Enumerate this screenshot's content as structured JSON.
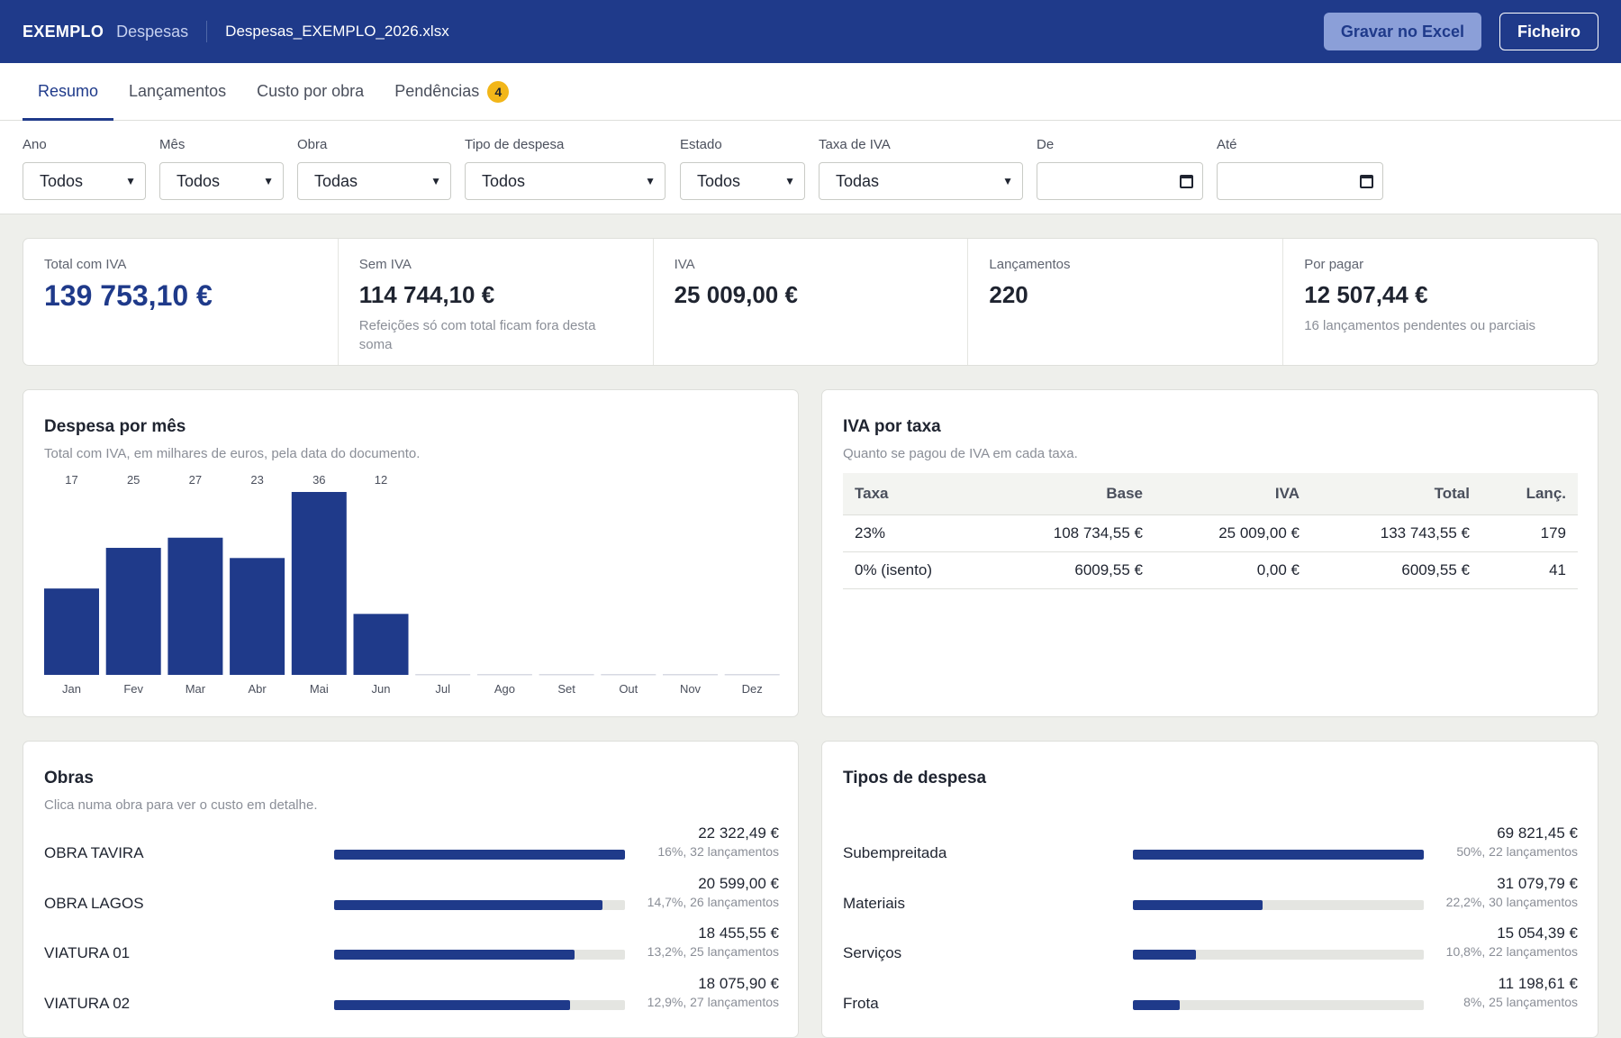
{
  "header": {
    "brand": "EXEMPLO",
    "section": "Despesas",
    "filename": "Despesas_EXEMPLO_2026.xlsx",
    "save_button": "Gravar no Excel",
    "file_button": "Ficheiro"
  },
  "tabs": [
    {
      "label": "Resumo",
      "active": true
    },
    {
      "label": "Lançamentos",
      "active": false
    },
    {
      "label": "Custo por obra",
      "active": false
    },
    {
      "label": "Pendências",
      "active": false,
      "badge": "4"
    }
  ],
  "filters": {
    "ano": {
      "label": "Ano",
      "value": "Todos"
    },
    "mes": {
      "label": "Mês",
      "value": "Todos"
    },
    "obra": {
      "label": "Obra",
      "value": "Todas"
    },
    "tipo": {
      "label": "Tipo de despesa",
      "value": "Todos"
    },
    "estado": {
      "label": "Estado",
      "value": "Todos"
    },
    "taxa": {
      "label": "Taxa de IVA",
      "value": "Todas"
    },
    "de": {
      "label": "De",
      "value": ""
    },
    "ate": {
      "label": "Até",
      "value": ""
    }
  },
  "kpis": {
    "total": {
      "label": "Total com IVA",
      "value": "139 753,10 €"
    },
    "sem_iva": {
      "label": "Sem IVA",
      "value": "114 744,10 €",
      "note": "Refeições só com total ficam fora desta soma"
    },
    "iva": {
      "label": "IVA",
      "value": "25 009,00 €"
    },
    "lancamentos": {
      "label": "Lançamentos",
      "value": "220"
    },
    "por_pagar": {
      "label": "Por pagar",
      "value": "12 507,44 €",
      "note": "16 lançamentos pendentes ou parciais"
    }
  },
  "monthly": {
    "title": "Despesa por mês",
    "subtitle": "Total com IVA, em milhares de euros, pela data do documento."
  },
  "chart_data": {
    "type": "bar",
    "categories": [
      "Jan",
      "Fev",
      "Mar",
      "Abr",
      "Mai",
      "Jun",
      "Jul",
      "Ago",
      "Set",
      "Out",
      "Nov",
      "Dez"
    ],
    "values": [
      17,
      25,
      27,
      23,
      36,
      12,
      0,
      0,
      0,
      0,
      0,
      0
    ],
    "value_labels": [
      "17",
      "25",
      "27",
      "23",
      "36",
      "12",
      "",
      "",
      "",
      "",
      "",
      ""
    ],
    "title": "Despesa por mês",
    "ylim": [
      0,
      36
    ],
    "grid": false,
    "bar_color": "#1f3a8a"
  },
  "iva": {
    "title": "IVA por taxa",
    "subtitle": "Quanto se pagou de IVA em cada taxa.",
    "headers": {
      "taxa": "Taxa",
      "base": "Base",
      "iva": "IVA",
      "total": "Total",
      "lanc": "Lanç."
    },
    "rows": [
      {
        "taxa": "23%",
        "base": "108 734,55 €",
        "iva": "25 009,00 €",
        "total": "133 743,55 €",
        "lanc": "179"
      },
      {
        "taxa": "0% (isento)",
        "base": "6009,55 €",
        "iva": "0,00 €",
        "total": "6009,55 €",
        "lanc": "41"
      }
    ]
  },
  "obras": {
    "title": "Obras",
    "subtitle": "Clica numa obra para ver o custo em detalhe.",
    "items": [
      {
        "name": "OBRA TAVIRA",
        "amount": "22 322,49 €",
        "meta": "16%, 32 lançamentos",
        "fraction": 1.0
      },
      {
        "name": "OBRA LAGOS",
        "amount": "20 599,00 €",
        "meta": "14,7%, 26 lançamentos",
        "fraction": 0.923
      },
      {
        "name": "VIATURA 01",
        "amount": "18 455,55 €",
        "meta": "13,2%, 25 lançamentos",
        "fraction": 0.827
      },
      {
        "name": "VIATURA 02",
        "amount": "18 075,90 €",
        "meta": "12,9%, 27 lançamentos",
        "fraction": 0.81
      }
    ]
  },
  "tipos": {
    "title": "Tipos de despesa",
    "items": [
      {
        "name": "Subempreitada",
        "amount": "69 821,45 €",
        "meta": "50%, 22 lançamentos",
        "fraction": 1.0
      },
      {
        "name": "Materiais",
        "amount": "31 079,79 €",
        "meta": "22,2%, 30 lançamentos",
        "fraction": 0.445
      },
      {
        "name": "Serviços",
        "amount": "15 054,39 €",
        "meta": "10,8%, 22 lançamentos",
        "fraction": 0.216
      },
      {
        "name": "Frota",
        "amount": "11 198,61 €",
        "meta": "8%, 25 lançamentos",
        "fraction": 0.16
      }
    ]
  }
}
